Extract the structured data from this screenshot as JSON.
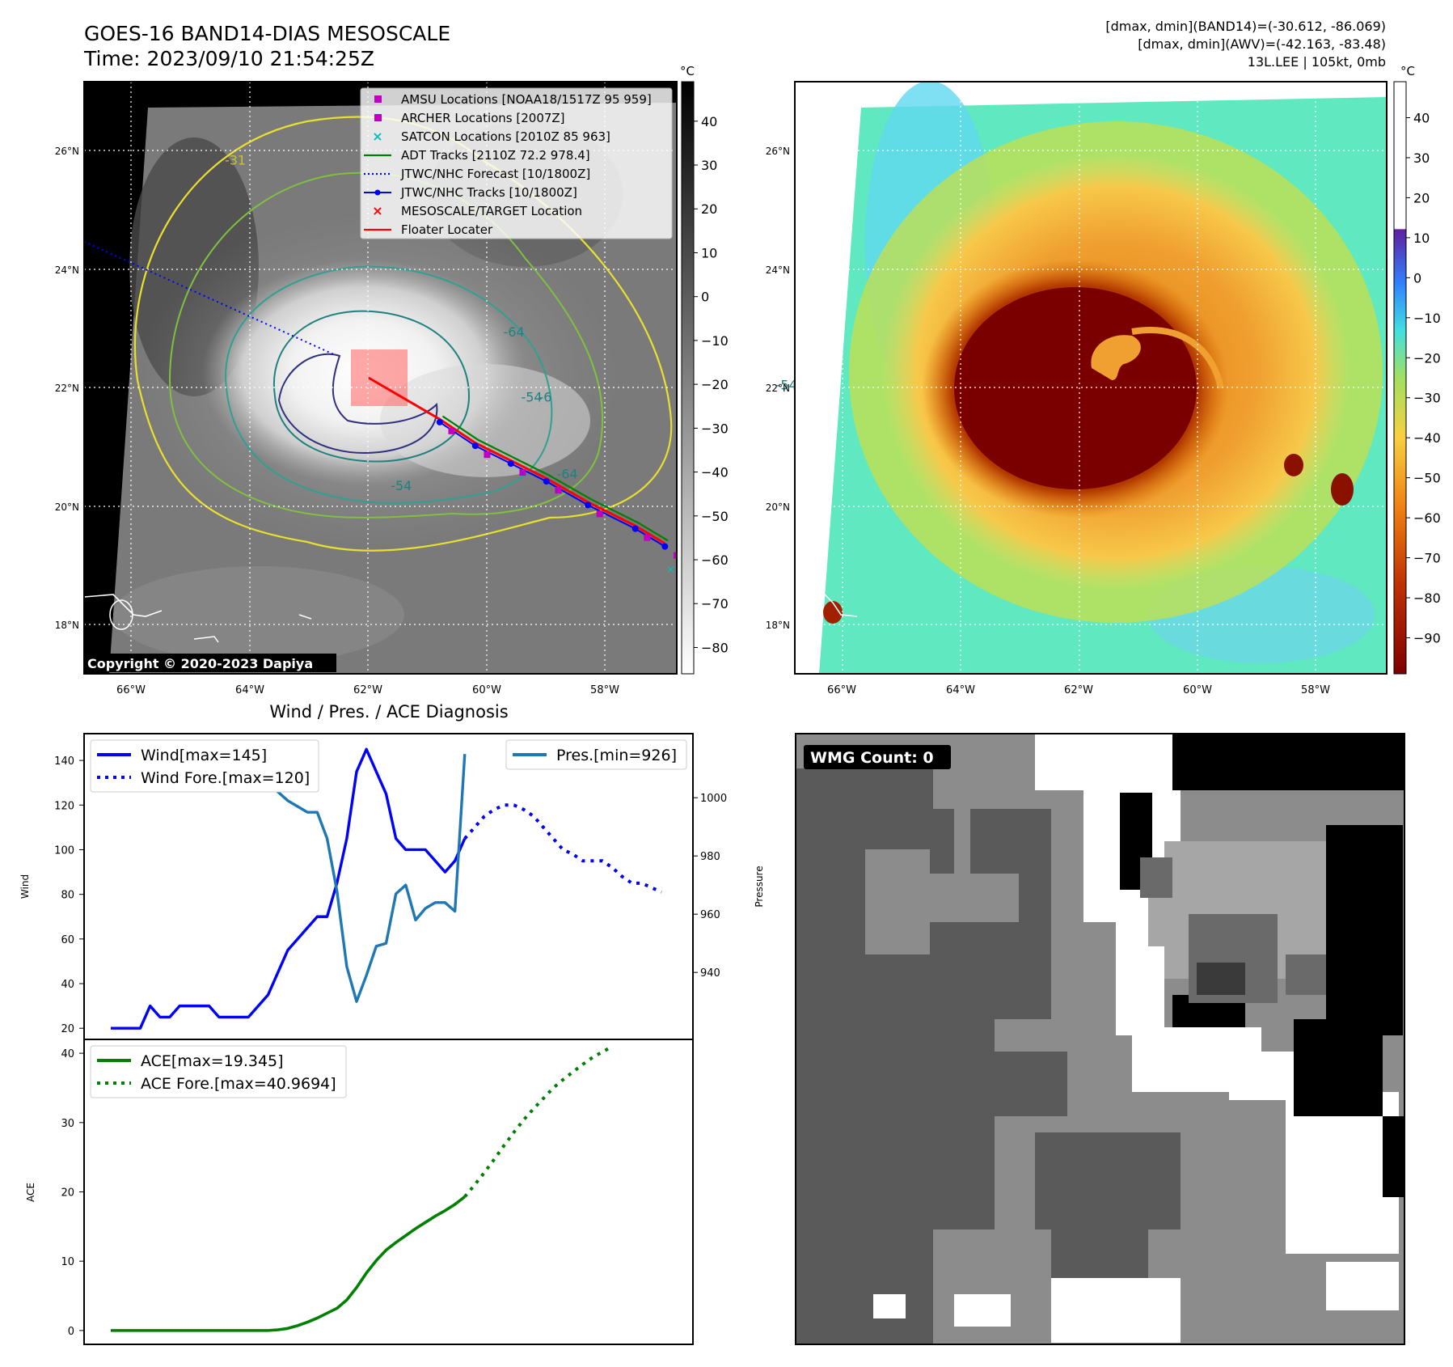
{
  "header": {
    "title_line1": "GOES-16 BAND14-DIAS MESOSCALE",
    "title_line2": "Time: 2023/09/10 21:54:25Z",
    "info_line1": "[dmax, dmin](BAND14)=(-30.612, -86.069)",
    "info_line2": "[dmax, dmin](AWV)=(-42.163, -83.48)",
    "info_line3": "13L.LEE | 105kt, 0mb"
  },
  "map_axes": {
    "lon_ticks": [
      "66°W",
      "64°W",
      "62°W",
      "60°W",
      "58°W"
    ],
    "lat_ticks": [
      "26°N",
      "24°N",
      "22°N",
      "20°N",
      "18°N"
    ],
    "lon_range": [
      -66.8,
      -56.8
    ],
    "lat_range": [
      17.2,
      27.2
    ]
  },
  "ir_panel": {
    "colorbar_unit": "°C",
    "colorbar_ticks": [
      "40",
      "30",
      "20",
      "10",
      "0",
      "−10",
      "−20",
      "−30",
      "−40",
      "−50",
      "−60",
      "−70",
      "−80"
    ],
    "colorbar_range": [
      -86,
      49
    ],
    "copyright": "Copyright © 2020-2023 Dapiya",
    "contour_labels": [
      "-31",
      "-64",
      "-54",
      "-64",
      "-54",
      "-54",
      "-6"
    ],
    "legend": [
      {
        "label": "AMSU Locations [NOAA18/1517Z 95 959]",
        "marker": "square",
        "color": "#c000c0"
      },
      {
        "label": "ARCHER Locations [2007Z]",
        "marker": "square",
        "color": "#c000c0"
      },
      {
        "label": "SATCON Locations [2010Z 85 963]",
        "marker": "x",
        "color": "#00c0c0"
      },
      {
        "label": "ADT Tracks [2110Z 72.2 978.4]",
        "marker": "line",
        "color": "#008000"
      },
      {
        "label": "JTWC/NHC Forecast [10/1800Z]",
        "marker": "dotted",
        "color": "#0000ff"
      },
      {
        "label": "JTWC/NHC Tracks [10/1800Z]",
        "marker": "dot-line",
        "color": "#0000ff"
      },
      {
        "label": "MESOSCALE/TARGET Location",
        "marker": "x",
        "color": "#ff0000"
      },
      {
        "label": "Floater Locater",
        "marker": "line",
        "color": "#ff0000"
      }
    ],
    "track_points": [
      [
        -60.8,
        21.5
      ],
      [
        -60.2,
        21.1
      ],
      [
        -59.6,
        20.8
      ],
      [
        -59.0,
        20.5
      ],
      [
        -58.3,
        20.1
      ],
      [
        -57.5,
        19.7
      ],
      [
        -57.0,
        19.4
      ]
    ]
  },
  "wv_panel": {
    "colorbar_unit": "°C",
    "colorbar_ticks": [
      "40",
      "30",
      "20",
      "10",
      "0",
      "−10",
      "−20",
      "−30",
      "−40",
      "−50",
      "−60",
      "−70",
      "−80",
      "−90"
    ],
    "colorbar_range": [
      -99,
      49
    ]
  },
  "chart_data": [
    {
      "type": "line",
      "title": "Wind / Pres. / ACE Diagnosis",
      "ylabel": "Wind",
      "ylabel_right": "Pressure",
      "ylim": [
        15,
        152
      ],
      "ylim_right": [
        917,
        1022
      ],
      "y_ticks": [
        20,
        40,
        60,
        80,
        100,
        120,
        140
      ],
      "y_ticks_right": [
        940,
        960,
        980,
        1000
      ],
      "series": [
        {
          "name": "Wind[max=145]",
          "color": "#0000ff",
          "style": "solid",
          "values": [
            20,
            20,
            20,
            20,
            30,
            25,
            25,
            30,
            30,
            30,
            30,
            25,
            25,
            25,
            25,
            30,
            35,
            45,
            55,
            60,
            65,
            70,
            70,
            85,
            105,
            135,
            145,
            135,
            125,
            105,
            100,
            100,
            100,
            95,
            90,
            95,
            105
          ]
        },
        {
          "name": "Wind Fore.[max=120]",
          "color": "#0000ff",
          "style": "dotted",
          "values": [
            105,
            110,
            115,
            118,
            120,
            120,
            118,
            115,
            110,
            105,
            100,
            98,
            95,
            95,
            95,
            92,
            88,
            85,
            85,
            83,
            81
          ],
          "offset": 36
        },
        {
          "name": "Pres.[min=926]",
          "color": "#1f77b4",
          "style": "solid",
          "axis": "right",
          "values": [
            1012,
            1012,
            1012,
            1012,
            1011,
            1011,
            1011,
            1011,
            1011,
            1011,
            1012,
            1012,
            1012,
            1011,
            1010,
            1009,
            1006,
            1002,
            999,
            997,
            995,
            995,
            986,
            968,
            942,
            930,
            939,
            949,
            950,
            967,
            970,
            958,
            962,
            964,
            964,
            961,
            1015
          ]
        }
      ],
      "x_count": 57
    },
    {
      "type": "line",
      "ylabel": "ACE",
      "ylim": [
        -2,
        42
      ],
      "y_ticks": [
        0,
        10,
        20,
        30,
        40
      ],
      "series": [
        {
          "name": "ACE[max=19.345]",
          "color": "#008000",
          "style": "solid",
          "values": [
            0,
            0,
            0,
            0,
            0,
            0,
            0,
            0,
            0,
            0,
            0,
            0,
            0,
            0,
            0,
            0,
            0,
            0.1,
            0.3,
            0.7,
            1.2,
            1.8,
            2.5,
            3.2,
            4.4,
            6.2,
            8.3,
            10.1,
            11.6,
            12.7,
            13.7,
            14.7,
            15.6,
            16.5,
            17.3,
            18.2,
            19.3
          ]
        },
        {
          "name": "ACE Fore.[max=40.9694]",
          "color": "#008000",
          "style": "dotted",
          "values": [
            19.3,
            21.0,
            22.8,
            24.7,
            26.7,
            28.6,
            30.4,
            32.0,
            33.5,
            35.0,
            36.2,
            37.3,
            38.4,
            39.4,
            40.2,
            40.97
          ],
          "offset": 36
        }
      ],
      "x_count": 57
    }
  ],
  "wmg_panel": {
    "label": "WMG Count: 0"
  }
}
